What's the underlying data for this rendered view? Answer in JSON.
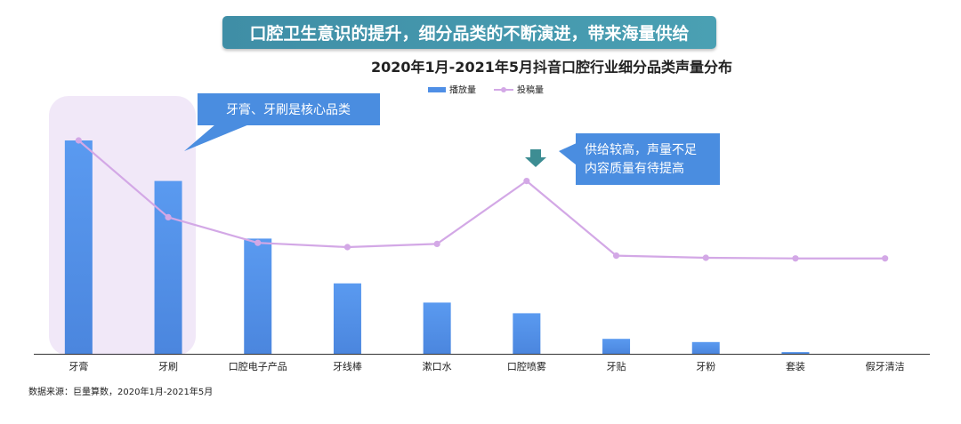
{
  "header": {
    "banner": "口腔卫生意识的提升，细分品类的不断演进，带来海量供给",
    "title": "2020年1月-2021年5月抖音口腔行业细分品类声量分布"
  },
  "callouts": {
    "core": "牙膏、牙刷是核心品类",
    "supply_line1": "供给较高，声量不足",
    "supply_line2": "内容质量有待提高"
  },
  "source": "数据来源：巨量算数，2020年1月-2021年5月",
  "colors": {
    "bar": "#4f8fe6",
    "line": "#d3a8e6",
    "callout": "#4a8de0",
    "arrow": "#3d8d93",
    "highlight": "#efe6f7"
  },
  "chart_data": {
    "type": "bar",
    "categories": [
      "牙膏",
      "牙刷",
      "口腔电子产品",
      "牙线棒",
      "漱口水",
      "口腔喷雾",
      "牙贴",
      "牙粉",
      "套装",
      "假牙清洁"
    ],
    "series": [
      {
        "name": "播放量",
        "type": "bar",
        "values": [
          100,
          81,
          54,
          33,
          24,
          19,
          7,
          5.5,
          0.8,
          0
        ]
      },
      {
        "name": "投稿量",
        "type": "line",
        "values": [
          100,
          64,
          52,
          50,
          51.5,
          81,
          46,
          45,
          44.7,
          44.7
        ]
      }
    ],
    "ylim": [
      0,
      100
    ],
    "grid": false,
    "legend": "top-center",
    "xlabel": "",
    "ylabel": ""
  }
}
